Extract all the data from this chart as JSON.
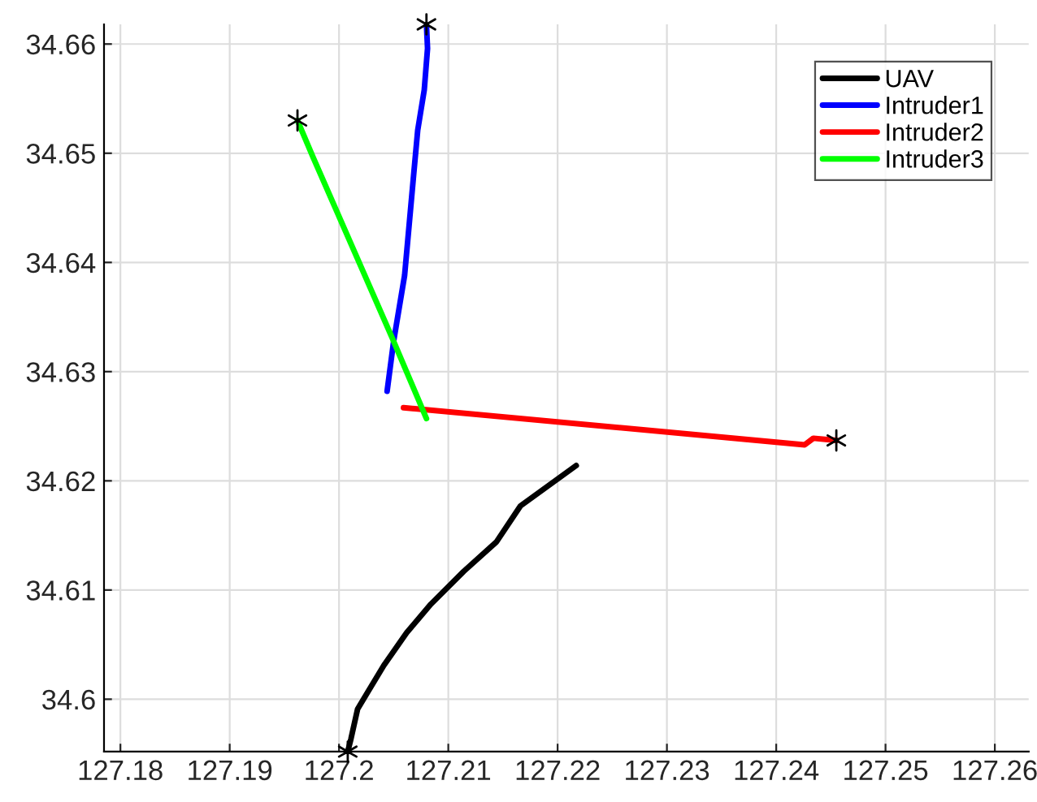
{
  "chart_data": {
    "type": "line",
    "xlim": [
      127.1785,
      127.2631
    ],
    "ylim": [
      34.5952,
      34.6618
    ],
    "xticks": [
      127.18,
      127.19,
      127.2,
      127.21,
      127.22,
      127.23,
      127.24,
      127.25,
      127.26
    ],
    "yticks": [
      34.6,
      34.61,
      34.62,
      34.63,
      34.64,
      34.65,
      34.66
    ],
    "grid": true,
    "legend": "top right",
    "line_style": "solid",
    "series": [
      {
        "name": "UAV",
        "color": "#000000",
        "x": [
          127.2008,
          127.2011,
          127.2017,
          127.2026,
          127.2041,
          127.2062,
          127.2084,
          127.2114,
          127.2144,
          127.2166,
          127.2217
        ],
        "values": [
          34.5952,
          34.5964,
          34.5991,
          34.6006,
          34.6031,
          34.6061,
          34.6087,
          34.6117,
          34.6144,
          34.6177,
          34.6214
        ]
      },
      {
        "name": "Intruder1",
        "color": "#0000ff",
        "x": [
          127.208,
          127.2081,
          127.2078,
          127.2072,
          127.2068,
          127.206,
          127.205,
          127.2044
        ],
        "values": [
          34.6618,
          34.6596,
          34.6558,
          34.6521,
          34.6477,
          34.6388,
          34.6328,
          34.6282
        ]
      },
      {
        "name": "Intruder2",
        "color": "#ff0000",
        "x": [
          127.2059,
          127.2426,
          127.2434,
          127.2455
        ],
        "values": [
          34.6267,
          34.6233,
          34.6239,
          34.6237
        ]
      },
      {
        "name": "Intruder3",
        "color": "#00ff00",
        "x": [
          127.1962,
          127.1976,
          127.2049,
          127.208
        ],
        "values": [
          34.653,
          34.6497,
          34.633,
          34.6257
        ]
      },
      {
        "type": "scatter",
        "marker": "cross",
        "color": "#000000",
        "x": [
          127.2008,
          127.208,
          127.2455,
          127.1962
        ],
        "values": [
          34.5952,
          34.6618,
          34.6237,
          34.653
        ]
      }
    ]
  }
}
